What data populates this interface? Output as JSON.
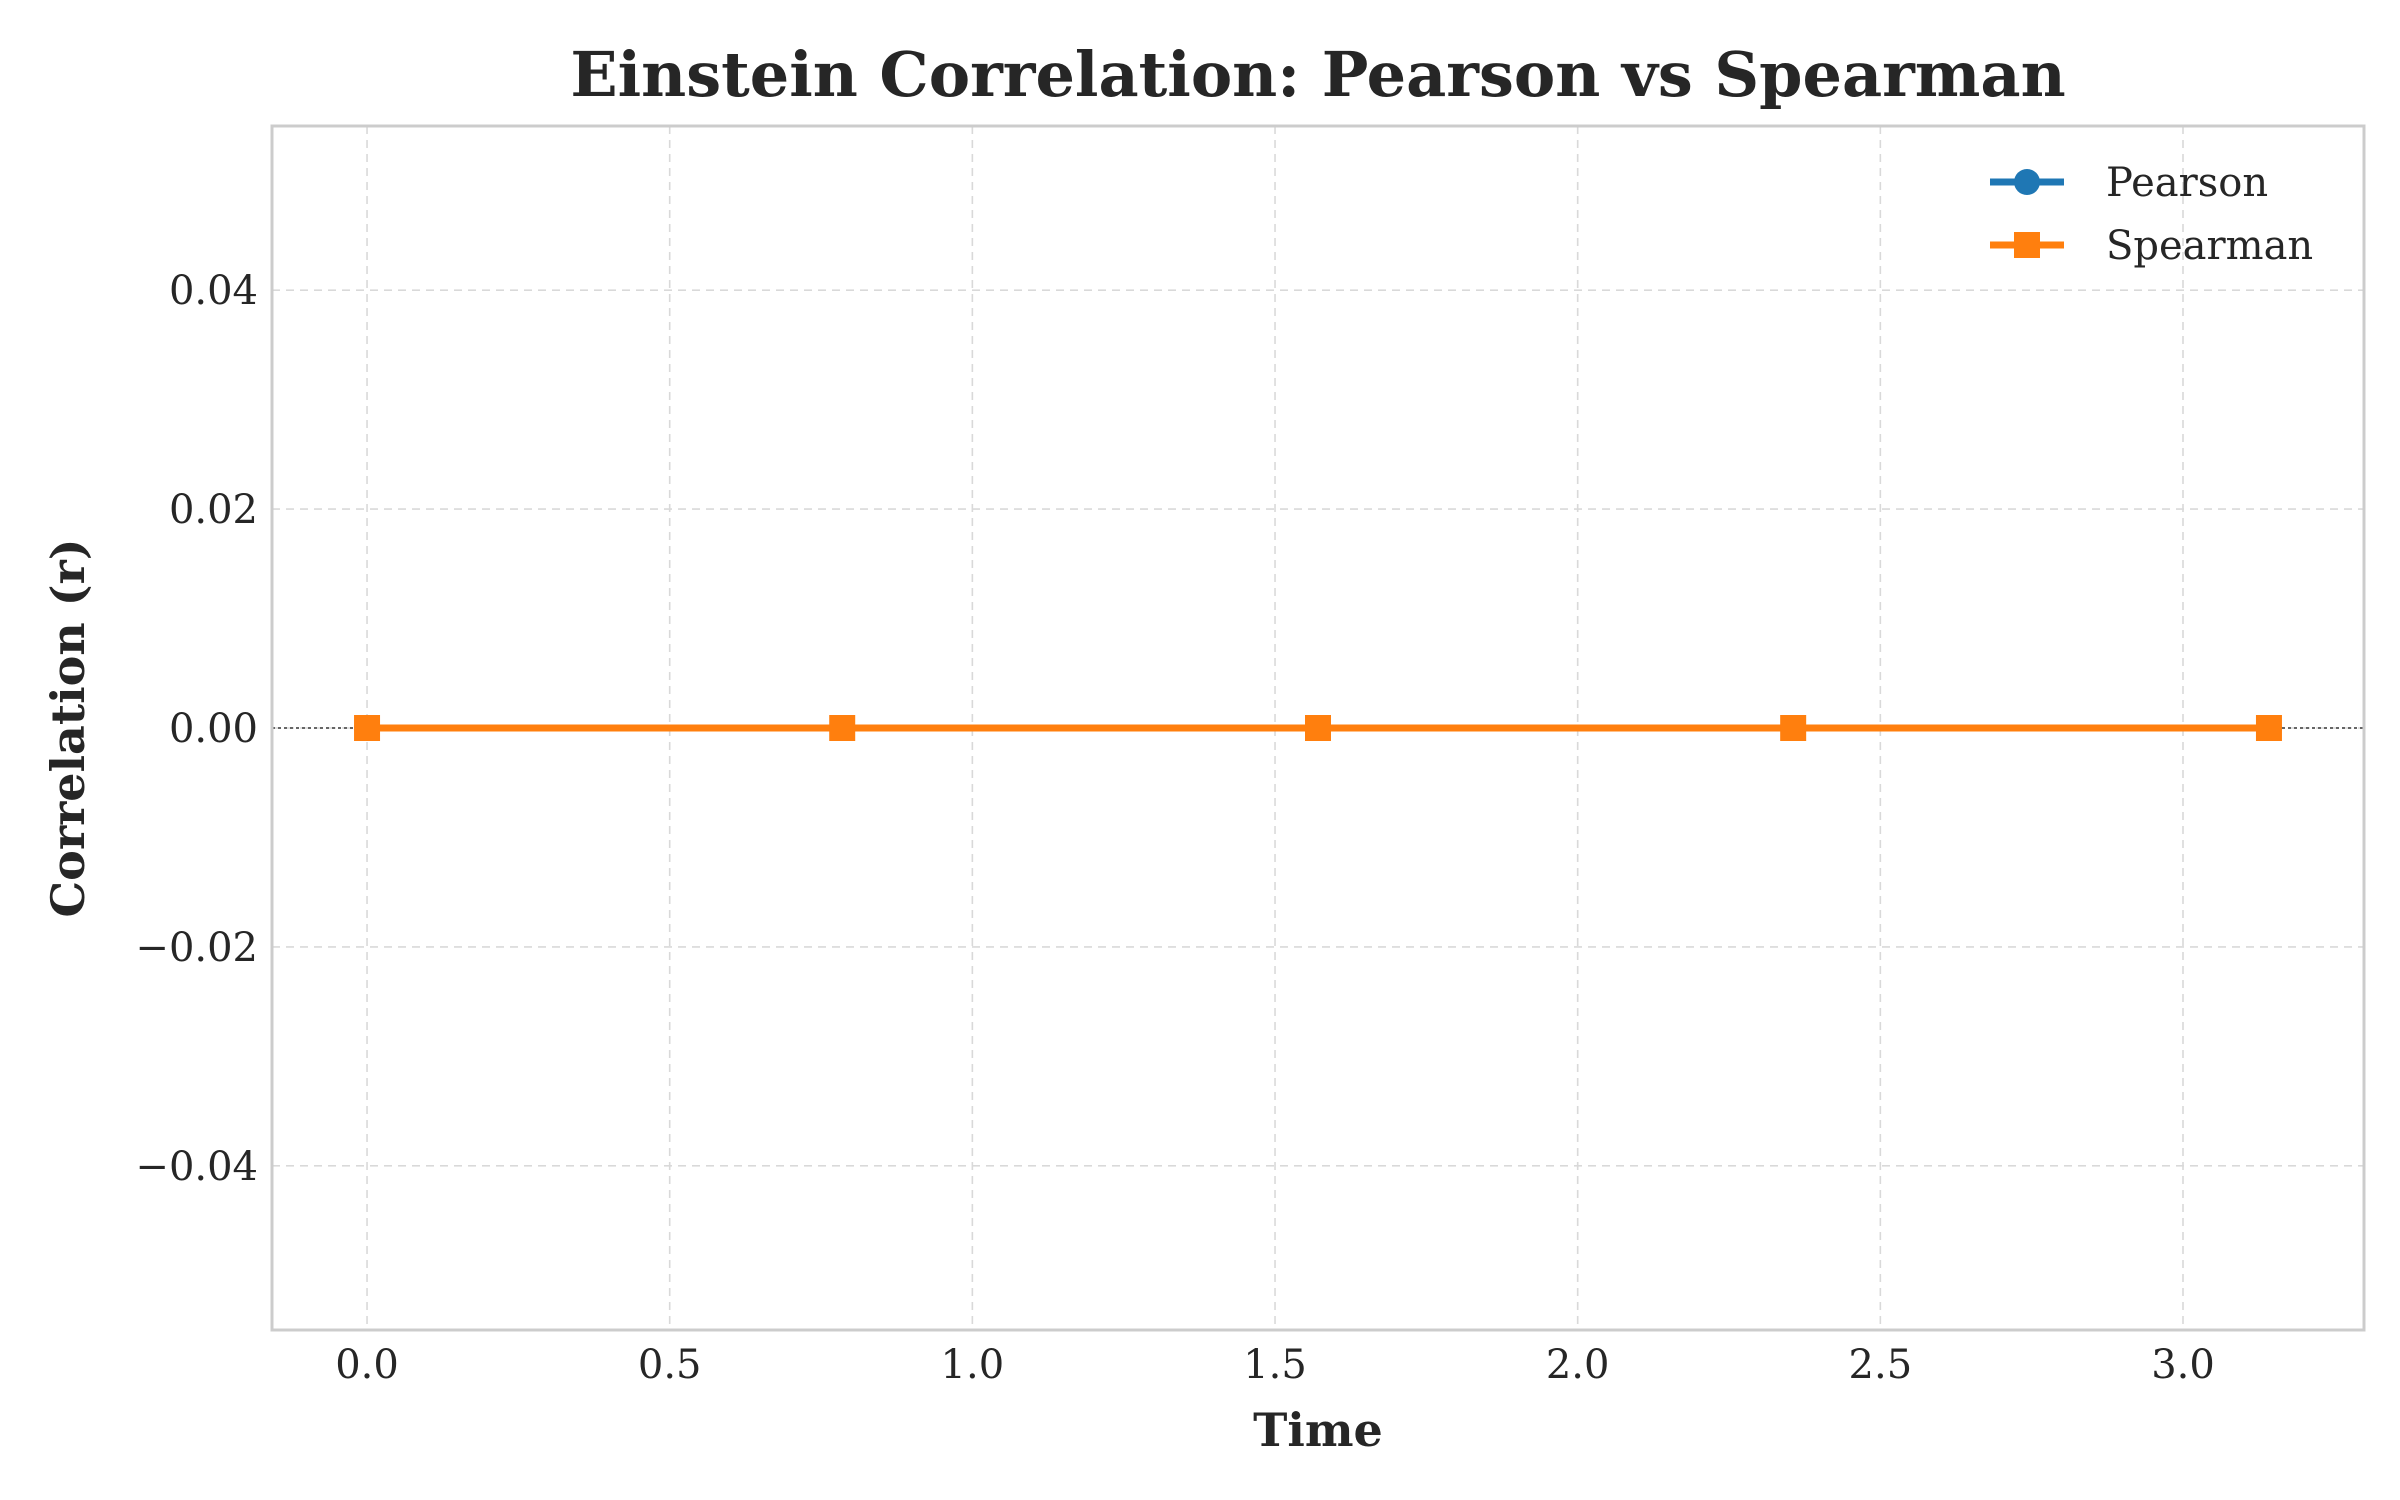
{
  "chart_data": {
    "type": "line",
    "title": "Einstein Correlation: Pearson vs Spearman",
    "xlabel": "Time",
    "ylabel": "Correlation (r)",
    "xlim": [
      -0.157,
      3.299
    ],
    "ylim": [
      -0.055,
      0.055
    ],
    "x_ticks": [
      0.0,
      0.5,
      1.0,
      1.5,
      2.0,
      2.5,
      3.0
    ],
    "x_tick_labels": [
      "0.0",
      "0.5",
      "1.0",
      "1.5",
      "2.0",
      "2.5",
      "3.0"
    ],
    "y_ticks": [
      -0.04,
      -0.02,
      0.0,
      0.02,
      0.04
    ],
    "y_tick_labels": [
      "−0.04",
      "−0.02",
      "0.00",
      "0.02",
      "0.04"
    ],
    "grid": true,
    "zero_line": true,
    "legend_position": "top-right",
    "x": [
      0.0,
      0.785,
      1.571,
      2.356,
      3.142
    ],
    "series": [
      {
        "name": "Pearson",
        "values": [
          0,
          0,
          0,
          0,
          0
        ],
        "color": "#1f77b4",
        "marker": "circle"
      },
      {
        "name": "Spearman",
        "values": [
          0,
          0,
          0,
          0,
          0
        ],
        "color": "#ff7f0e",
        "marker": "square"
      }
    ]
  }
}
